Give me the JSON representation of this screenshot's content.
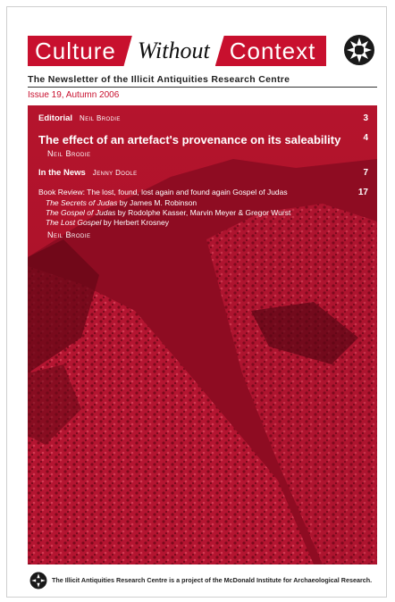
{
  "masthead": {
    "word1": "Culture",
    "word2": "Without",
    "word3": "Context",
    "emblem_icon": "star-emblem-icon",
    "accent": "#c8102e"
  },
  "subtitle": "The Newsletter of the Illicit Antiquities Research Centre",
  "issue": "Issue 19, Autumn 2006",
  "toc": {
    "editorial": {
      "title": "Editorial",
      "author": "Neil Brodie",
      "page": "3"
    },
    "feature": {
      "title": "The effect of an artefact's provenance on its saleability",
      "author": "Neil Brodie",
      "page": "4"
    },
    "news": {
      "title": "In the News",
      "author": "Jenny Doole",
      "page": "7"
    },
    "review": {
      "title": "Book Review: The lost, found, lost again and found again Gospel of Judas",
      "page": "17",
      "books": [
        {
          "title": "The Secrets of Judas",
          "rest": " by James M. Robinson"
        },
        {
          "title": "The Gospel of Judas",
          "rest": " by Rodolphe Kasser, Marvin Meyer & Gregor Wurst"
        },
        {
          "title": "The Lost Gospel",
          "rest": " by Herbert Krosney"
        }
      ],
      "author": "Neil Brodie"
    }
  },
  "footer": {
    "icon": "star-emblem-icon",
    "text": "The Illicit Antiquities Research Centre is a project of the McDonald Institute for Archaeological Research."
  }
}
